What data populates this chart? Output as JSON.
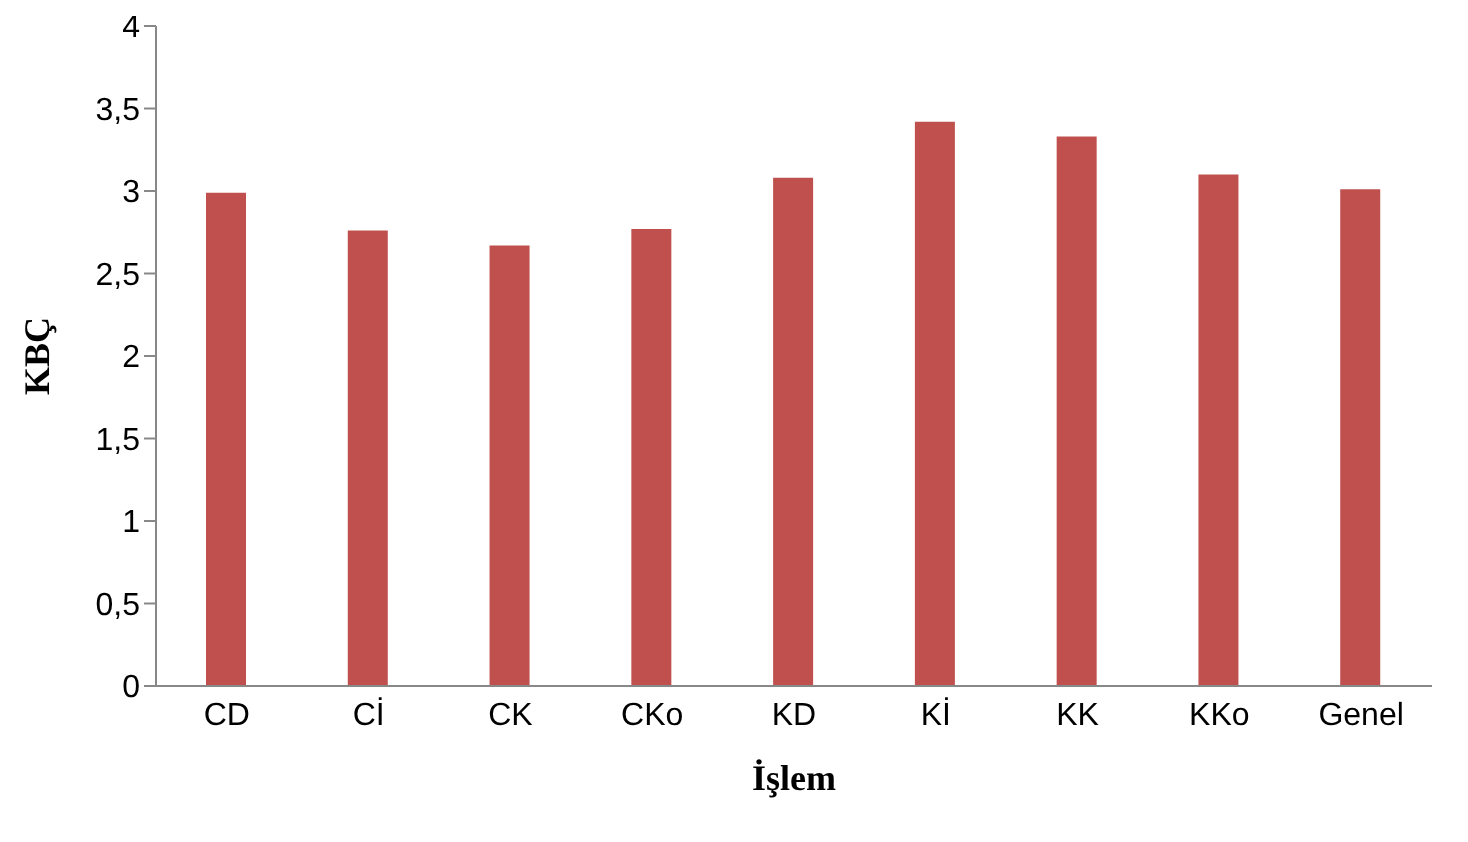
{
  "chart_data": {
    "type": "bar",
    "xlabel": "İşlem",
    "ylabel": "KBÇ",
    "categories": [
      "CD",
      "Cİ",
      "CK",
      "CKo",
      "KD",
      "Kİ",
      "KK",
      "KKo",
      "Genel"
    ],
    "values": [
      2.99,
      2.76,
      2.67,
      2.77,
      3.08,
      3.42,
      3.33,
      3.1,
      3.01
    ],
    "color": "#c0504d",
    "ylim": [
      0,
      4
    ],
    "yticks": [
      0,
      {
        "value": 0.5,
        "label": "0,5"
      },
      1,
      {
        "value": 1.5,
        "label": "1,5"
      },
      2,
      {
        "value": 2.5,
        "label": "2,5"
      },
      3,
      {
        "value": 3.5,
        "label": "3,5"
      },
      4
    ]
  }
}
